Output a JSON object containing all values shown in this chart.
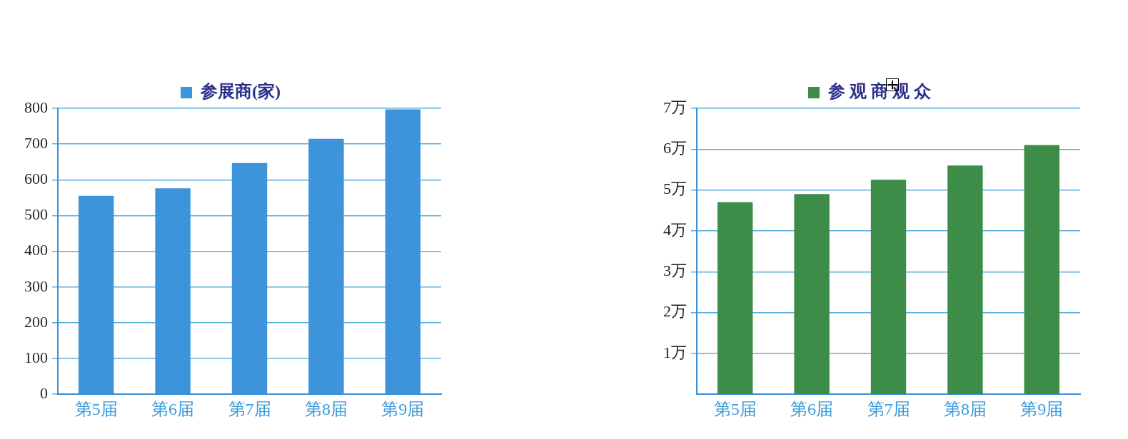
{
  "chart_data": [
    {
      "type": "bar",
      "categories": [
        "第5届",
        "第6届",
        "第7届",
        "第8届",
        "第9届"
      ],
      "series": [
        {
          "name": "参展商(家)",
          "color": "#3d94db",
          "values": [
            555,
            576,
            647,
            715,
            797
          ]
        }
      ],
      "ylim": [
        0,
        800
      ],
      "yticks": [
        0,
        100,
        200,
        300,
        400,
        500,
        600,
        700,
        800
      ],
      "grid": "y",
      "legend": "top"
    },
    {
      "type": "bar",
      "categories": [
        "第5届",
        "第6届",
        "第7届",
        "第8届",
        "第9届"
      ],
      "series": [
        {
          "name": "参 观 商 观 众",
          "color": "#3d8c48",
          "values": [
            4.7,
            4.9,
            5.25,
            5.6,
            6.1
          ]
        }
      ],
      "ylim": [
        0,
        7
      ],
      "yticks": [
        {
          "value": 1,
          "label": "1万"
        },
        {
          "value": 2,
          "label": "2万"
        },
        {
          "value": 3,
          "label": "3万"
        },
        {
          "value": 4,
          "label": "4万"
        },
        {
          "value": 5,
          "label": "5万"
        },
        {
          "value": 6,
          "label": "6万"
        },
        {
          "value": 7,
          "label": "7万"
        }
      ],
      "grid": "y",
      "legend": "top"
    }
  ]
}
